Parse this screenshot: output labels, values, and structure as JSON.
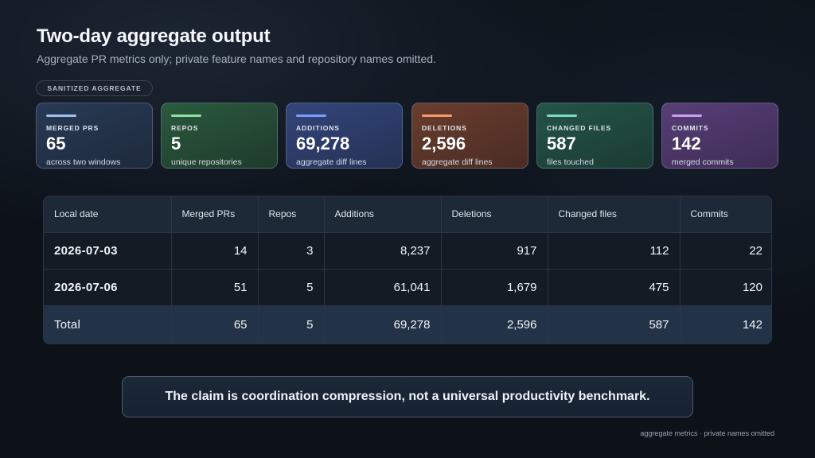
{
  "header": {
    "title": "Two-day aggregate output",
    "subtitle": "Aggregate PR metrics only; private feature names and repository names omitted."
  },
  "badge": "SANITIZED AGGREGATE",
  "cards": [
    {
      "label": "MERGED PRS",
      "value": "65",
      "note": "across two windows",
      "accent": "#9cc0f0"
    },
    {
      "label": "REPOS",
      "value": "5",
      "note": "unique repositories",
      "accent": "#8ee0a0"
    },
    {
      "label": "ADDITIONS",
      "value": "69,278",
      "note": "aggregate diff lines",
      "accent": "#7a9cff"
    },
    {
      "label": "DELETIONS",
      "value": "2,596",
      "note": "aggregate diff lines",
      "accent": "#f79a6a"
    },
    {
      "label": "CHANGED FILES",
      "value": "587",
      "note": "files touched",
      "accent": "#7ed9c4"
    },
    {
      "label": "COMMITS",
      "value": "142",
      "note": "merged commits",
      "accent": "#c6a0f5"
    }
  ],
  "table": {
    "columns": [
      "Local date",
      "Merged PRs",
      "Repos",
      "Additions",
      "Deletions",
      "Changed files",
      "Commits"
    ],
    "rows": [
      [
        "2026-07-03",
        "14",
        "3",
        "8,237",
        "917",
        "112",
        "22"
      ],
      [
        "2026-07-06",
        "51",
        "5",
        "61,041",
        "1,679",
        "475",
        "120"
      ]
    ],
    "total": [
      "Total",
      "65",
      "5",
      "69,278",
      "2,596",
      "587",
      "142"
    ]
  },
  "callout": "The claim is coordination compression, not a universal productivity benchmark.",
  "footer": "aggregate metrics · private names omitted"
}
